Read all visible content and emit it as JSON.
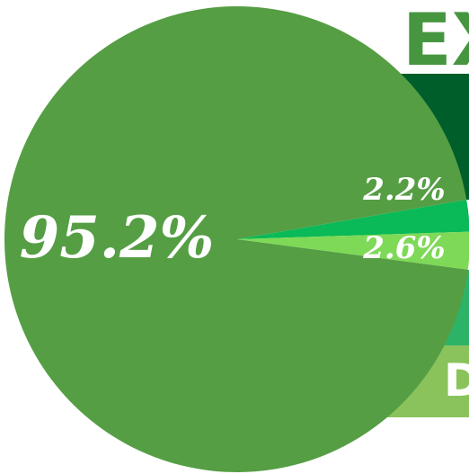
{
  "chart_data": {
    "type": "pie",
    "title": "EX",
    "slices": [
      {
        "label": "95.2%",
        "value": 95.2,
        "color": "#559e44"
      },
      {
        "label": "2.2%",
        "value": 2.2,
        "color": "#0ab957"
      },
      {
        "label": "2.6%",
        "value": 2.6,
        "color": "#7ed957"
      }
    ],
    "start_angle_deg": 0,
    "direction": "counterclockwise",
    "legend_visible": "D"
  },
  "colors": {
    "title_text": "#469640",
    "band_dark": "#005e2b",
    "band_mid": "#2db368",
    "band_light": "#8ac35b",
    "legend_text": "#ffffff"
  }
}
